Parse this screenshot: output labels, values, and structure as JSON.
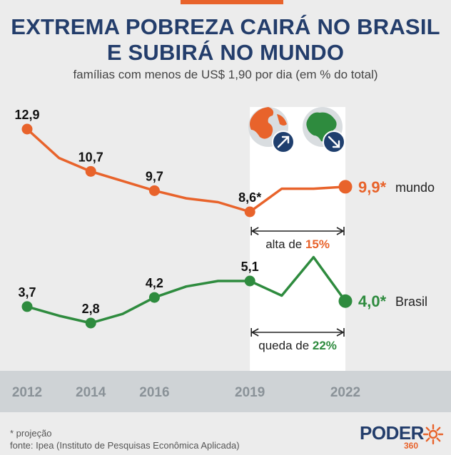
{
  "header": {
    "title_line1": "EXTREMA POBREZA CAIRÁ NO BRASIL",
    "title_line2": "E SUBIRÁ NO MUNDO",
    "subtitle": "famílias com menos de US$ 1,90 por dia (em % do total)"
  },
  "chart_data": {
    "type": "line",
    "x_ticks": [
      "2012",
      "2014",
      "2016",
      "2019",
      "2022"
    ],
    "x_range": [
      2012,
      2022
    ],
    "series": [
      {
        "name": "mundo",
        "color": "#e8632b",
        "points": [
          {
            "x": 2012,
            "y": 12.9,
            "label": "12,9"
          },
          {
            "x": 2013,
            "y": 11.4
          },
          {
            "x": 2014,
            "y": 10.7,
            "label": "10,7"
          },
          {
            "x": 2015,
            "y": 10.2
          },
          {
            "x": 2016,
            "y": 9.7,
            "label": "9,7"
          },
          {
            "x": 2017,
            "y": 9.3
          },
          {
            "x": 2018,
            "y": 9.1
          },
          {
            "x": 2019,
            "y": 8.6,
            "label": "8,6*"
          },
          {
            "x": 2020,
            "y": 9.8
          },
          {
            "x": 2021,
            "y": 9.8
          },
          {
            "x": 2022,
            "y": 9.9,
            "label": "9,9*"
          }
        ],
        "end_label": "mundo"
      },
      {
        "name": "Brasil",
        "color": "#2e8b3e",
        "points": [
          {
            "x": 2012,
            "y": 3.7,
            "label": "3,7"
          },
          {
            "x": 2013,
            "y": 3.2
          },
          {
            "x": 2014,
            "y": 2.8,
            "label": "2,8"
          },
          {
            "x": 2015,
            "y": 3.3
          },
          {
            "x": 2016,
            "y": 4.2,
            "label": "4,2"
          },
          {
            "x": 2017,
            "y": 4.8
          },
          {
            "x": 2018,
            "y": 5.1
          },
          {
            "x": 2019,
            "y": 5.1,
            "label": "5,1"
          },
          {
            "x": 2020,
            "y": 4.3
          },
          {
            "x": 2021,
            "y": 6.4
          },
          {
            "x": 2022,
            "y": 4.0,
            "label": "4,0*"
          }
        ],
        "end_label": "Brasil"
      }
    ],
    "annotations": [
      {
        "series": "mundo",
        "text": "alta de ",
        "value": "15%",
        "range": [
          2019,
          2022
        ]
      },
      {
        "series": "Brasil",
        "text": "queda de ",
        "value": "22%",
        "range": [
          2019,
          2022
        ]
      }
    ],
    "highlight_range": [
      2019,
      2022
    ],
    "icons": [
      "globe-icon",
      "brazil-map-icon"
    ]
  },
  "footer": {
    "note": "* projeção",
    "source": "fonte: Ipea (Instituto de Pesquisas Econômica Aplicada)"
  },
  "logo": {
    "text": "PODER",
    "sub": "360"
  }
}
